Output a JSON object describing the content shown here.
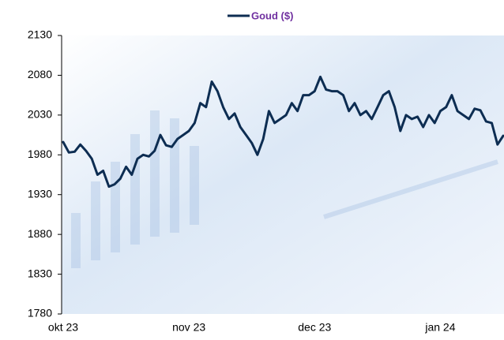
{
  "chart_data": {
    "type": "line",
    "categories": [
      "okt 23",
      null,
      null,
      null,
      null,
      null,
      null,
      null,
      null,
      null,
      null,
      null,
      null,
      null,
      null,
      null,
      null,
      null,
      null,
      null,
      null,
      null,
      "nov 23",
      null,
      null,
      null,
      null,
      null,
      null,
      null,
      null,
      null,
      null,
      null,
      null,
      null,
      null,
      null,
      null,
      null,
      null,
      null,
      null,
      null,
      "dec 23",
      null,
      null,
      null,
      null,
      null,
      null,
      null,
      null,
      null,
      null,
      null,
      null,
      null,
      null,
      null,
      null,
      null,
      null,
      null,
      null,
      null,
      "jan 24",
      null,
      null,
      null,
      null,
      null,
      null,
      null,
      null,
      null,
      null,
      null
    ],
    "series": [
      {
        "name": "Goud ($)",
        "color": "#0d2d52",
        "values": [
          1996,
          1983,
          1984,
          1993,
          1985,
          1975,
          1955,
          1960,
          1940,
          1943,
          1950,
          1965,
          1955,
          1975,
          1980,
          1978,
          1985,
          2005,
          1992,
          1990,
          2000,
          2005,
          2010,
          2020,
          2045,
          2040,
          2072,
          2060,
          2040,
          2025,
          2032,
          2015,
          2005,
          1995,
          1980,
          2000,
          2035,
          2020,
          2025,
          2030,
          2045,
          2035,
          2055,
          2055,
          2060,
          2078,
          2062,
          2060,
          2060,
          2055,
          2035,
          2045,
          2030,
          2035,
          2025,
          2040,
          2055,
          2060,
          2040,
          2010,
          2030,
          2025,
          2028,
          2015,
          2030,
          2020,
          2035,
          2040,
          2055,
          2035,
          2030,
          2025,
          2038,
          2036,
          2022,
          2020,
          1993,
          2004
        ]
      }
    ],
    "legend_color": "#7030a0",
    "ylim": [
      1780,
      2130
    ],
    "yticks": [
      1780,
      1830,
      1880,
      1930,
      1980,
      2030,
      2080,
      2130
    ]
  }
}
